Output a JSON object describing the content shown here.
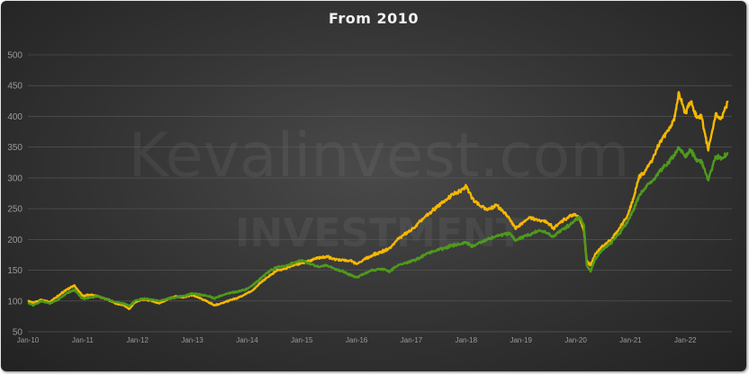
{
  "chart_data": {
    "type": "line",
    "title": "From 2010",
    "xlabel": "",
    "ylabel": "",
    "ylim": [
      50,
      500
    ],
    "yticks": [
      50,
      100,
      150,
      200,
      250,
      300,
      350,
      400,
      450,
      500
    ],
    "x_ticks": [
      "Jan-10",
      "Jan-11",
      "Jan-12",
      "Jan-13",
      "Jan-14",
      "Jan-15",
      "Jan-16",
      "Jan-17",
      "Jan-18",
      "Jan-19",
      "Jan-20",
      "Jan-21",
      "Jan-22"
    ],
    "grid": true,
    "legend": "none",
    "watermark": {
      "line1": "Kevalinvest.com",
      "line2": "INVESTMENT"
    },
    "series": [
      {
        "color": "#f5b800",
        "points": [
          [
            2010.0,
            100
          ],
          [
            2010.1,
            97
          ],
          [
            2010.25,
            102
          ],
          [
            2010.4,
            98
          ],
          [
            2010.55,
            108
          ],
          [
            2010.7,
            118
          ],
          [
            2010.85,
            125
          ],
          [
            2011.0,
            108
          ],
          [
            2011.15,
            110
          ],
          [
            2011.3,
            107
          ],
          [
            2011.45,
            103
          ],
          [
            2011.6,
            96
          ],
          [
            2011.75,
            93
          ],
          [
            2011.85,
            87
          ],
          [
            2011.95,
            97
          ],
          [
            2012.1,
            103
          ],
          [
            2012.25,
            100
          ],
          [
            2012.4,
            96
          ],
          [
            2012.55,
            103
          ],
          [
            2012.7,
            108
          ],
          [
            2012.85,
            106
          ],
          [
            2013.0,
            110
          ],
          [
            2013.15,
            104
          ],
          [
            2013.3,
            98
          ],
          [
            2013.4,
            93
          ],
          [
            2013.5,
            95
          ],
          [
            2013.65,
            100
          ],
          [
            2013.8,
            104
          ],
          [
            2013.95,
            110
          ],
          [
            2014.1,
            117
          ],
          [
            2014.25,
            130
          ],
          [
            2014.4,
            140
          ],
          [
            2014.55,
            150
          ],
          [
            2014.7,
            153
          ],
          [
            2014.85,
            158
          ],
          [
            2015.0,
            162
          ],
          [
            2015.15,
            165
          ],
          [
            2015.3,
            170
          ],
          [
            2015.45,
            172
          ],
          [
            2015.6,
            168
          ],
          [
            2015.75,
            166
          ],
          [
            2015.9,
            165
          ],
          [
            2016.0,
            160
          ],
          [
            2016.15,
            168
          ],
          [
            2016.3,
            175
          ],
          [
            2016.45,
            180
          ],
          [
            2016.6,
            185
          ],
          [
            2016.75,
            200
          ],
          [
            2016.9,
            210
          ],
          [
            2017.0,
            215
          ],
          [
            2017.15,
            228
          ],
          [
            2017.3,
            240
          ],
          [
            2017.45,
            252
          ],
          [
            2017.6,
            262
          ],
          [
            2017.75,
            272
          ],
          [
            2017.9,
            280
          ],
          [
            2018.0,
            288
          ],
          [
            2018.1,
            268
          ],
          [
            2018.25,
            255
          ],
          [
            2018.4,
            248
          ],
          [
            2018.55,
            256
          ],
          [
            2018.7,
            244
          ],
          [
            2018.8,
            232
          ],
          [
            2018.9,
            218
          ],
          [
            2019.0,
            225
          ],
          [
            2019.15,
            236
          ],
          [
            2019.3,
            232
          ],
          [
            2019.45,
            230
          ],
          [
            2019.6,
            218
          ],
          [
            2019.75,
            230
          ],
          [
            2019.9,
            238
          ],
          [
            2020.0,
            240
          ],
          [
            2020.08,
            232
          ],
          [
            2020.15,
            215
          ],
          [
            2020.2,
            165
          ],
          [
            2020.27,
            158
          ],
          [
            2020.35,
            175
          ],
          [
            2020.5,
            190
          ],
          [
            2020.65,
            200
          ],
          [
            2020.8,
            218
          ],
          [
            2020.95,
            240
          ],
          [
            2021.05,
            265
          ],
          [
            2021.15,
            300
          ],
          [
            2021.25,
            310
          ],
          [
            2021.4,
            330
          ],
          [
            2021.55,
            360
          ],
          [
            2021.7,
            378
          ],
          [
            2021.8,
            395
          ],
          [
            2021.88,
            438
          ],
          [
            2022.0,
            405
          ],
          [
            2022.1,
            425
          ],
          [
            2022.2,
            400
          ],
          [
            2022.3,
            398
          ],
          [
            2022.42,
            345
          ],
          [
            2022.55,
            402
          ],
          [
            2022.65,
            395
          ],
          [
            2022.78,
            423
          ]
        ]
      },
      {
        "color": "#4e9a1c",
        "points": [
          [
            2010.0,
            97
          ],
          [
            2010.1,
            93
          ],
          [
            2010.25,
            100
          ],
          [
            2010.4,
            96
          ],
          [
            2010.55,
            102
          ],
          [
            2010.7,
            112
          ],
          [
            2010.85,
            118
          ],
          [
            2011.0,
            103
          ],
          [
            2011.15,
            106
          ],
          [
            2011.3,
            108
          ],
          [
            2011.45,
            103
          ],
          [
            2011.6,
            98
          ],
          [
            2011.75,
            96
          ],
          [
            2011.85,
            92
          ],
          [
            2011.95,
            100
          ],
          [
            2012.1,
            104
          ],
          [
            2012.25,
            102
          ],
          [
            2012.4,
            100
          ],
          [
            2012.55,
            104
          ],
          [
            2012.7,
            106
          ],
          [
            2012.85,
            108
          ],
          [
            2013.0,
            112
          ],
          [
            2013.15,
            110
          ],
          [
            2013.3,
            108
          ],
          [
            2013.4,
            104
          ],
          [
            2013.5,
            108
          ],
          [
            2013.65,
            112
          ],
          [
            2013.8,
            115
          ],
          [
            2013.95,
            118
          ],
          [
            2014.1,
            125
          ],
          [
            2014.25,
            137
          ],
          [
            2014.4,
            148
          ],
          [
            2014.55,
            155
          ],
          [
            2014.7,
            157
          ],
          [
            2014.85,
            162
          ],
          [
            2015.0,
            166
          ],
          [
            2015.15,
            160
          ],
          [
            2015.3,
            156
          ],
          [
            2015.45,
            158
          ],
          [
            2015.6,
            152
          ],
          [
            2015.75,
            148
          ],
          [
            2015.9,
            142
          ],
          [
            2016.0,
            138
          ],
          [
            2016.15,
            145
          ],
          [
            2016.3,
            150
          ],
          [
            2016.45,
            152
          ],
          [
            2016.6,
            148
          ],
          [
            2016.75,
            158
          ],
          [
            2016.9,
            162
          ],
          [
            2017.0,
            165
          ],
          [
            2017.15,
            170
          ],
          [
            2017.3,
            178
          ],
          [
            2017.45,
            182
          ],
          [
            2017.6,
            186
          ],
          [
            2017.75,
            190
          ],
          [
            2017.9,
            193
          ],
          [
            2018.0,
            196
          ],
          [
            2018.1,
            188
          ],
          [
            2018.25,
            195
          ],
          [
            2018.4,
            200
          ],
          [
            2018.55,
            206
          ],
          [
            2018.7,
            208
          ],
          [
            2018.8,
            210
          ],
          [
            2018.9,
            198
          ],
          [
            2019.0,
            203
          ],
          [
            2019.15,
            208
          ],
          [
            2019.3,
            214
          ],
          [
            2019.45,
            212
          ],
          [
            2019.6,
            204
          ],
          [
            2019.75,
            216
          ],
          [
            2019.9,
            224
          ],
          [
            2020.0,
            232
          ],
          [
            2020.08,
            236
          ],
          [
            2020.15,
            222
          ],
          [
            2020.2,
            158
          ],
          [
            2020.27,
            148
          ],
          [
            2020.35,
            168
          ],
          [
            2020.5,
            184
          ],
          [
            2020.65,
            195
          ],
          [
            2020.8,
            210
          ],
          [
            2020.95,
            230
          ],
          [
            2021.05,
            248
          ],
          [
            2021.15,
            270
          ],
          [
            2021.25,
            282
          ],
          [
            2021.4,
            296
          ],
          [
            2021.55,
            312
          ],
          [
            2021.7,
            325
          ],
          [
            2021.8,
            338
          ],
          [
            2021.88,
            350
          ],
          [
            2022.0,
            335
          ],
          [
            2022.1,
            345
          ],
          [
            2022.2,
            330
          ],
          [
            2022.3,
            325
          ],
          [
            2022.42,
            296
          ],
          [
            2022.55,
            335
          ],
          [
            2022.65,
            332
          ],
          [
            2022.78,
            340
          ]
        ]
      }
    ]
  }
}
